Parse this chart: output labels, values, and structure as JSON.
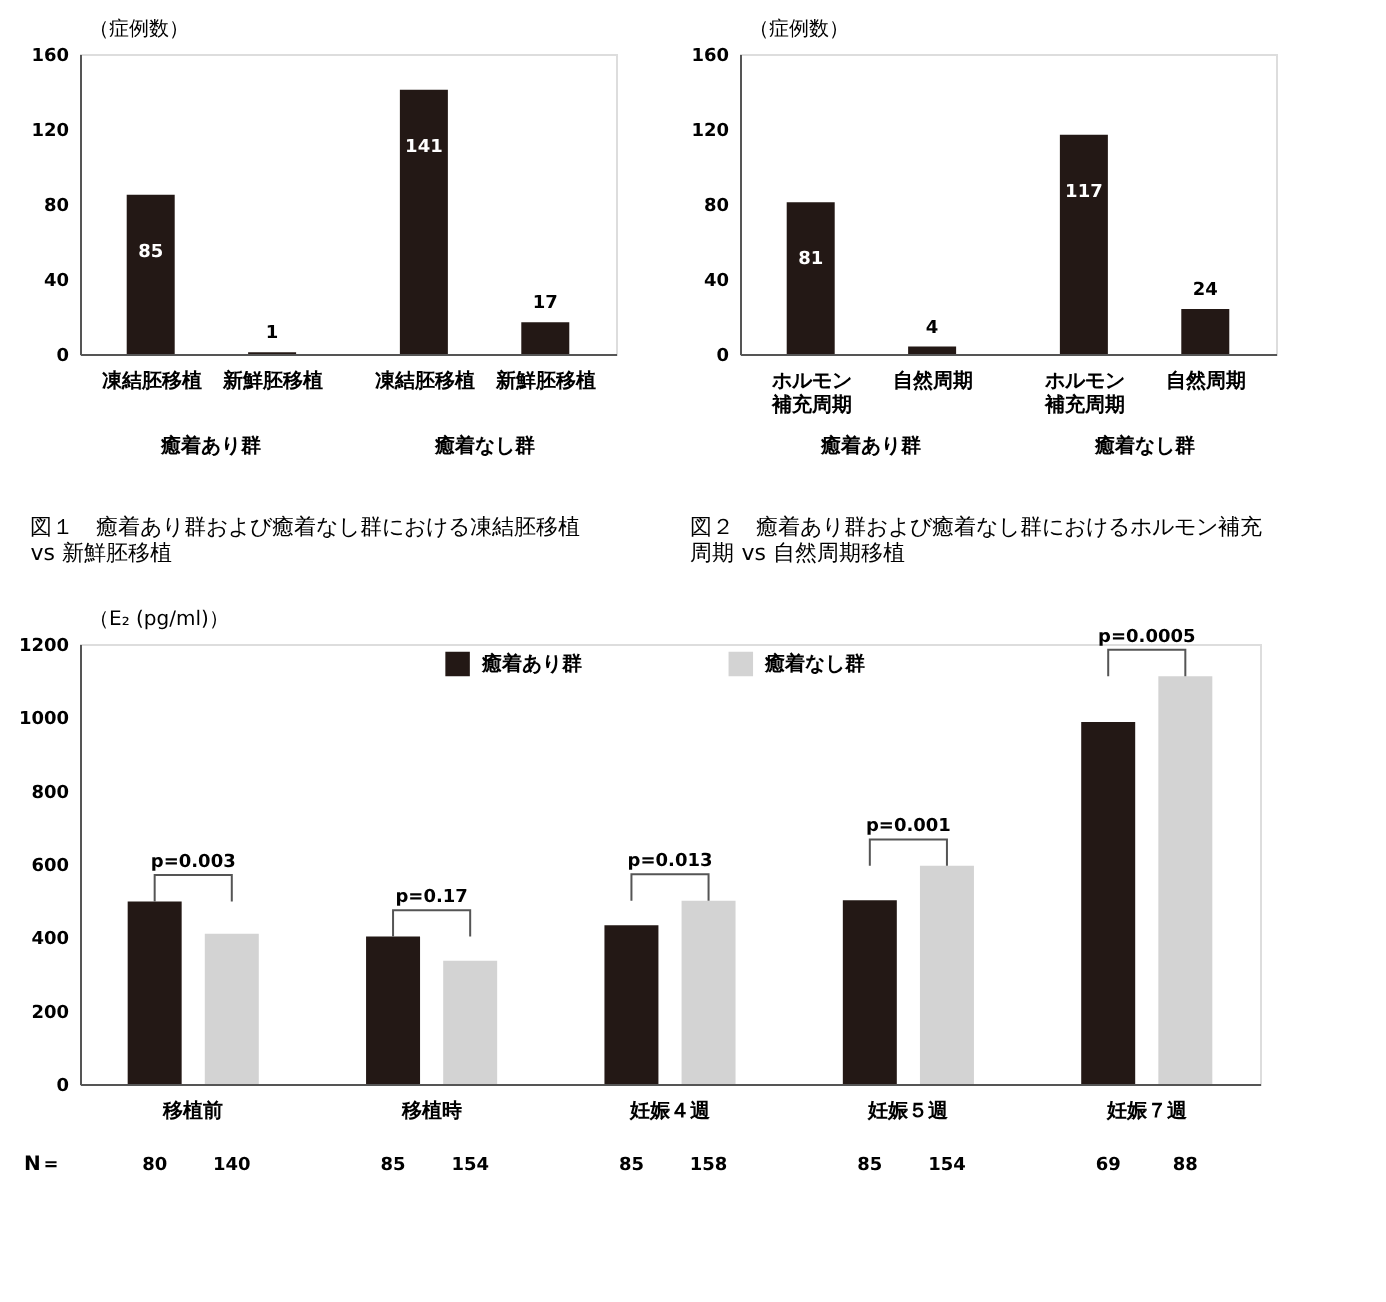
{
  "chart_data": [
    {
      "type": "bar",
      "title": "図１　癒着あり群および癒着なし群における凍結胚移植 vs 新鮮胚移植",
      "ylabel": "（症例数）",
      "categories": [
        "凍結胚移植",
        "新鮮胚移植",
        "凍結胚移植",
        "新鮮胚移植"
      ],
      "values": [
        85,
        1,
        141,
        17
      ],
      "color": "#231815",
      "ylim": [
        0,
        160
      ],
      "yticks": [
        0,
        40,
        80,
        120,
        160
      ],
      "data_labels": true,
      "annotations": [
        "癒着あり群",
        "癒着なし群"
      ]
    },
    {
      "type": "bar",
      "title": "図２　癒着あり群および癒着なし群におけるホルモン補充周期 vs 自然周期移植",
      "ylabel": "（症例数）",
      "categories": [
        "ホルモン補充周期",
        "自然周期",
        "ホルモン補充周期",
        "自然周期"
      ],
      "values": [
        81,
        4,
        117,
        24
      ],
      "color": "#231815",
      "ylim": [
        0,
        160
      ],
      "yticks": [
        0,
        40,
        80,
        120,
        160
      ],
      "data_labels": true,
      "annotations": [
        "癒着あり群",
        "癒着なし群"
      ]
    },
    {
      "type": "bar",
      "ylabel": "（E₂ (pg/ml)）",
      "categories": [
        "移植前",
        "移植時",
        "妊娠４週",
        "妊娠５週",
        "妊娠７週"
      ],
      "series": [
        {
          "name": "癒着あり群",
          "color": "#231815",
          "values": [
            498,
            402,
            433,
            501,
            987
          ]
        },
        {
          "name": "癒着なし群",
          "color": "#d3d3d3",
          "values": [
            410,
            336,
            500,
            595,
            1112
          ]
        }
      ],
      "ylim": [
        0,
        1200
      ],
      "yticks": [
        0,
        200,
        400,
        600,
        800,
        1000,
        1200
      ],
      "legend": "top",
      "annotations": [
        "p=0.003",
        "p=0.17",
        "p=0.013",
        "p=0.001",
        "p=0.0005",
        "N＝",
        "80",
        "140",
        "85",
        "154",
        "85",
        "158",
        "85",
        "154",
        "69",
        "88"
      ]
    }
  ]
}
